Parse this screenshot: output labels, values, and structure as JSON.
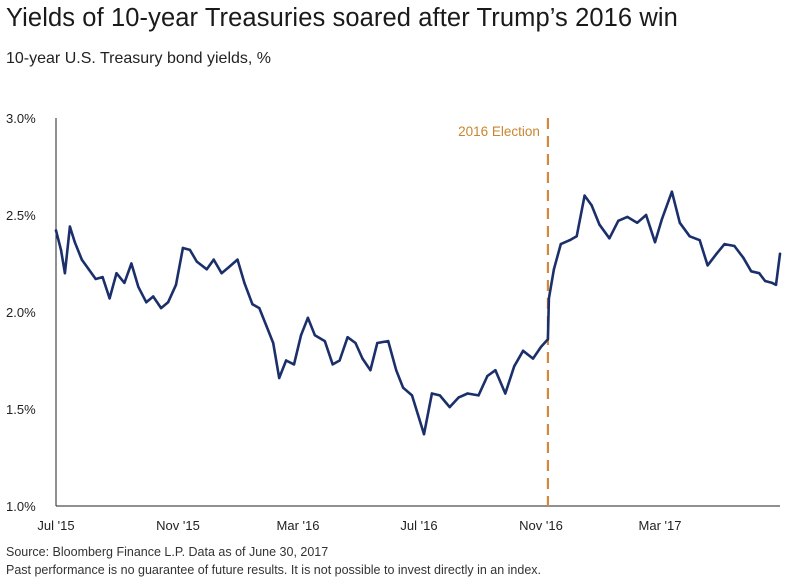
{
  "title": "Yields of 10-year Treasuries soared after Trump’s 2016 win",
  "subtitle": "10-year U.S. Treasury bond yields, %",
  "source": "Source: Bloomberg Finance L.P. Data as of June 30, 2017",
  "disclaimer": "Past performance is no guarantee of future results. It is not possible to invest directly in an index.",
  "colors": {
    "line": "#1b2f6b",
    "annotation": "#d28a3a",
    "axis": "#222222"
  },
  "chart_data": {
    "type": "line",
    "title": "Yields of 10-year Treasuries soared after Trump’s 2016 win",
    "subtitle": "10-year U.S. Treasury bond yields, %",
    "xlabel": "",
    "ylabel": "",
    "xlim": [
      "2015-07-01",
      "2017-06-30"
    ],
    "ylim": [
      1.0,
      3.0
    ],
    "yticks": [
      1.0,
      1.5,
      2.0,
      2.5,
      3.0
    ],
    "ytick_labels": [
      "1.0%",
      "1.5%",
      "2.0%",
      "2.5%",
      "3.0%"
    ],
    "xticks": [
      "2015-07-01",
      "2015-11-01",
      "2016-03-01",
      "2016-07-01",
      "2016-11-01",
      "2017-03-01"
    ],
    "xtick_labels": [
      "Jul '15",
      "Nov '15",
      "Mar '16",
      "Jul '16",
      "Nov '16",
      "Mar '17"
    ],
    "grid": false,
    "series": [
      {
        "x": [
          "2015-07-01",
          "2015-07-06",
          "2015-07-10",
          "2015-07-15",
          "2015-07-20",
          "2015-07-27",
          "2015-08-03",
          "2015-08-10",
          "2015-08-17",
          "2015-08-24",
          "2015-08-31",
          "2015-09-08",
          "2015-09-15",
          "2015-09-22",
          "2015-09-30",
          "2015-10-07",
          "2015-10-15",
          "2015-10-22",
          "2015-10-30",
          "2015-11-06",
          "2015-11-13",
          "2015-11-20",
          "2015-11-30",
          "2015-12-07",
          "2015-12-15",
          "2015-12-22",
          "2015-12-31",
          "2016-01-07",
          "2016-01-15",
          "2016-01-22",
          "2016-01-29",
          "2016-02-05",
          "2016-02-11",
          "2016-02-18",
          "2016-02-26",
          "2016-03-04",
          "2016-03-11",
          "2016-03-18",
          "2016-03-28",
          "2016-04-05",
          "2016-04-12",
          "2016-04-20",
          "2016-04-28",
          "2016-05-05",
          "2016-05-13",
          "2016-05-20",
          "2016-05-31",
          "2016-06-08",
          "2016-06-15",
          "2016-06-24",
          "2016-06-30",
          "2016-07-06",
          "2016-07-14",
          "2016-07-22",
          "2016-08-01",
          "2016-08-10",
          "2016-08-19",
          "2016-08-30",
          "2016-09-08",
          "2016-09-16",
          "2016-09-26",
          "2016-10-05",
          "2016-10-14",
          "2016-10-24",
          "2016-11-01",
          "2016-11-08",
          "2016-11-09",
          "2016-11-14",
          "2016-11-21",
          "2016-11-30",
          "2016-12-07",
          "2016-12-15",
          "2016-12-22",
          "2016-12-30",
          "2017-01-09",
          "2017-01-18",
          "2017-01-27",
          "2017-02-06",
          "2017-02-15",
          "2017-02-24",
          "2017-03-03",
          "2017-03-13",
          "2017-03-21",
          "2017-03-31",
          "2017-04-10",
          "2017-04-18",
          "2017-04-27",
          "2017-05-05",
          "2017-05-15",
          "2017-05-24",
          "2017-06-01",
          "2017-06-09",
          "2017-06-15",
          "2017-06-22",
          "2017-06-26",
          "2017-06-30"
        ],
        "y": [
          2.42,
          2.32,
          2.2,
          2.44,
          2.36,
          2.27,
          2.22,
          2.17,
          2.18,
          2.07,
          2.2,
          2.15,
          2.25,
          2.13,
          2.05,
          2.08,
          2.02,
          2.05,
          2.14,
          2.33,
          2.32,
          2.26,
          2.22,
          2.27,
          2.2,
          2.23,
          2.27,
          2.15,
          2.04,
          2.02,
          1.93,
          1.84,
          1.66,
          1.75,
          1.73,
          1.88,
          1.97,
          1.88,
          1.85,
          1.73,
          1.75,
          1.87,
          1.84,
          1.76,
          1.7,
          1.84,
          1.85,
          1.7,
          1.61,
          1.57,
          1.47,
          1.37,
          1.58,
          1.57,
          1.51,
          1.56,
          1.58,
          1.57,
          1.67,
          1.7,
          1.58,
          1.72,
          1.8,
          1.76,
          1.82,
          1.86,
          2.07,
          2.22,
          2.35,
          2.37,
          2.39,
          2.6,
          2.55,
          2.45,
          2.38,
          2.47,
          2.49,
          2.46,
          2.5,
          2.36,
          2.48,
          2.62,
          2.46,
          2.39,
          2.37,
          2.24,
          2.3,
          2.35,
          2.34,
          2.28,
          2.21,
          2.2,
          2.16,
          2.15,
          2.14,
          2.3
        ]
      }
    ],
    "annotations": [
      {
        "type": "vline",
        "x": "2016-11-08",
        "label": "2016 Election"
      }
    ]
  }
}
